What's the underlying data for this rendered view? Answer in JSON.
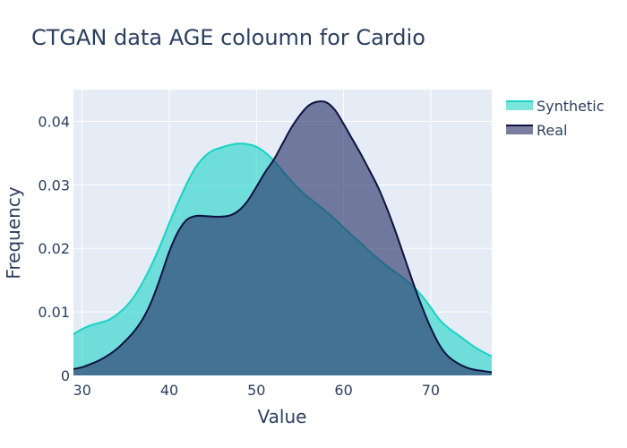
{
  "chart_data": {
    "type": "area",
    "title": "CTGAN data AGE coloumn for Cardio",
    "xlabel": "Value",
    "ylabel": "Frequency",
    "xlim": [
      29,
      77
    ],
    "ylim": [
      0,
      0.045
    ],
    "x_ticks": [
      30,
      40,
      50,
      60,
      70
    ],
    "y_ticks": [
      0,
      0.01,
      0.02,
      0.03,
      0.04
    ],
    "y_tick_labels": [
      "0",
      "0.01",
      "0.02",
      "0.03",
      "0.04"
    ],
    "grid": true,
    "legend_position": "top-right",
    "series": [
      {
        "name": "Synthetic",
        "line_color": "#19d3c5",
        "fill_color": "#19d3c5",
        "fill_opacity": 0.58,
        "x": [
          29,
          30,
          31,
          32,
          33,
          34,
          35,
          36,
          37,
          38,
          39,
          40,
          41,
          42,
          43,
          44,
          45,
          46,
          47,
          48,
          49,
          50,
          51,
          52,
          53,
          54,
          55,
          56,
          57,
          58,
          59,
          60,
          61,
          62,
          63,
          64,
          65,
          66,
          67,
          68,
          69,
          70,
          71,
          72,
          73,
          74,
          75,
          76,
          77
        ],
        "y": [
          0.0065,
          0.0073,
          0.0079,
          0.0083,
          0.0087,
          0.0096,
          0.0108,
          0.0125,
          0.0148,
          0.0175,
          0.0206,
          0.024,
          0.0272,
          0.0302,
          0.0327,
          0.0344,
          0.0354,
          0.0359,
          0.0363,
          0.0365,
          0.0364,
          0.036,
          0.0351,
          0.0338,
          0.0322,
          0.0306,
          0.0292,
          0.028,
          0.0269,
          0.0258,
          0.0246,
          0.0233,
          0.022,
          0.0208,
          0.0195,
          0.0183,
          0.0172,
          0.0162,
          0.0152,
          0.014,
          0.0125,
          0.0107,
          0.0088,
          0.0075,
          0.0065,
          0.0055,
          0.0045,
          0.0037,
          0.003
        ]
      },
      {
        "name": "Real",
        "line_color": "#0d1240",
        "fill_color": "#283065",
        "fill_opacity": 0.62,
        "x": [
          29,
          30,
          31,
          32,
          33,
          34,
          35,
          36,
          37,
          38,
          39,
          40,
          41,
          42,
          43,
          44,
          45,
          46,
          47,
          48,
          49,
          50,
          51,
          52,
          53,
          54,
          55,
          56,
          57,
          58,
          59,
          60,
          61,
          62,
          63,
          64,
          65,
          66,
          67,
          68,
          69,
          70,
          71,
          72,
          73,
          74,
          75,
          76,
          77
        ],
        "y": [
          0.001,
          0.0013,
          0.0018,
          0.0024,
          0.0032,
          0.0042,
          0.0055,
          0.007,
          0.009,
          0.0118,
          0.0155,
          0.0195,
          0.0226,
          0.0245,
          0.0251,
          0.0251,
          0.025,
          0.025,
          0.0252,
          0.026,
          0.0275,
          0.0297,
          0.032,
          0.034,
          0.0365,
          0.039,
          0.041,
          0.0425,
          0.0431,
          0.043,
          0.0418,
          0.0396,
          0.0372,
          0.0348,
          0.0322,
          0.0295,
          0.0262,
          0.0225,
          0.0185,
          0.0145,
          0.0108,
          0.0075,
          0.0048,
          0.003,
          0.002,
          0.0013,
          0.0009,
          0.0007,
          0.0005
        ]
      }
    ]
  }
}
